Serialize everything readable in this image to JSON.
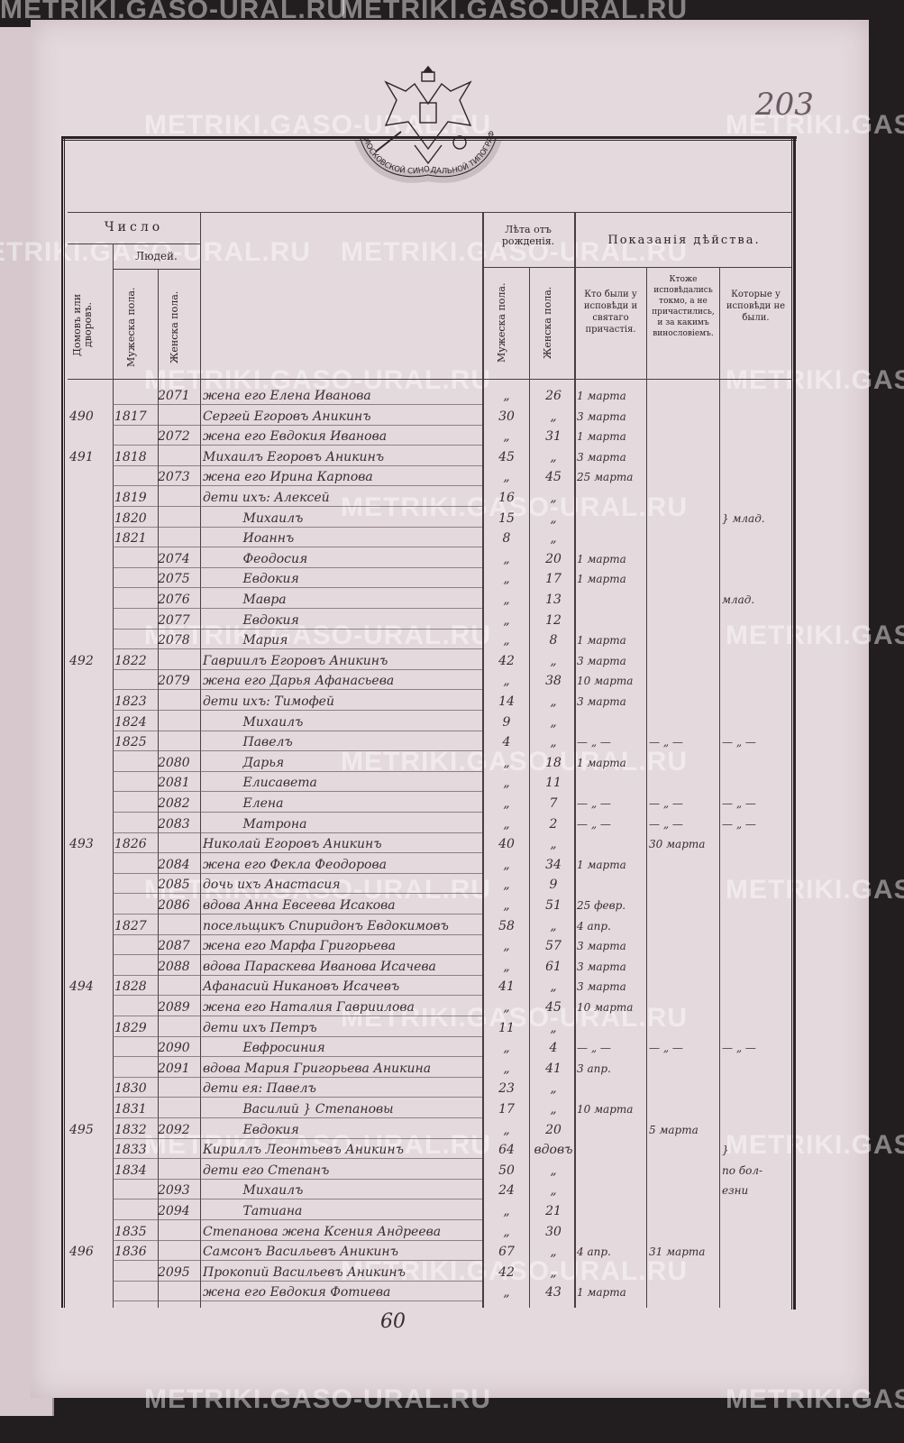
{
  "page_number": "203",
  "watermark": "METRIKI.GASO-URAL.RU",
  "emblem_ribbon": "МОСКОВСКОЙ СИНОДАЛЬНОЙ ТИПОГРАФІИ",
  "header": {
    "number": "Число",
    "people": "Людей.",
    "households": "Домовъ или дворовъ.",
    "male": "Мужеска пола.",
    "female": "Женска пола.",
    "age": "Лѣта отъ рожденія.",
    "age_male": "Мужеска пола.",
    "age_female": "Женска пола.",
    "action": "Показанія дѣйства.",
    "confessed": "Кто были у исповѣди и святаго причастія.",
    "confessed_only": "Ктоже исповѣдались токмо, а не причастились, и за какимъ винословіемъ.",
    "not_confessed": "Которые у исповѣди не были."
  },
  "rows": [
    {
      "hh": "",
      "m": "",
      "f": "2071",
      "name": "жена его Елена Иванова",
      "am": "„",
      "af": "26",
      "c1": "1 марта",
      "c2": "",
      "c3": ""
    },
    {
      "hh": "490",
      "m": "1817",
      "f": "",
      "name": "Сергей Егоровъ Аникинъ",
      "am": "30",
      "af": "„",
      "c1": "3 марта",
      "c2": "",
      "c3": ""
    },
    {
      "hh": "",
      "m": "",
      "f": "2072",
      "name": "жена его Евдокия Иванова",
      "am": "„",
      "af": "31",
      "c1": "1 марта",
      "c2": "",
      "c3": ""
    },
    {
      "hh": "491",
      "m": "1818",
      "f": "",
      "name": "Михаилъ Егоровъ Аникинъ",
      "am": "45",
      "af": "„",
      "c1": "3 марта",
      "c2": "",
      "c3": ""
    },
    {
      "hh": "",
      "m": "",
      "f": "2073",
      "name": "жена его Ирина Карпова",
      "am": "„",
      "af": "45",
      "c1": "25 марта",
      "c2": "",
      "c3": ""
    },
    {
      "hh": "",
      "m": "1819",
      "f": "",
      "name": "дети ихъ: Алексей",
      "am": "16",
      "af": "„",
      "c1": "",
      "c2": "",
      "c3": ""
    },
    {
      "hh": "",
      "m": "1820",
      "f": "",
      "name": "          Михаилъ",
      "am": "15",
      "af": "„",
      "c1": "",
      "c2": "",
      "c3": "} млад."
    },
    {
      "hh": "",
      "m": "1821",
      "f": "",
      "name": "          Иоаннъ",
      "am": "8",
      "af": "„",
      "c1": "",
      "c2": "",
      "c3": ""
    },
    {
      "hh": "",
      "m": "",
      "f": "2074",
      "name": "          Феодосия",
      "am": "„",
      "af": "20",
      "c1": "1 марта",
      "c2": "",
      "c3": ""
    },
    {
      "hh": "",
      "m": "",
      "f": "2075",
      "name": "          Евдокия",
      "am": "„",
      "af": "17",
      "c1": "1 марта",
      "c2": "",
      "c3": ""
    },
    {
      "hh": "",
      "m": "",
      "f": "2076",
      "name": "          Мавра",
      "am": "„",
      "af": "13",
      "c1": "",
      "c2": "",
      "c3": "млад."
    },
    {
      "hh": "",
      "m": "",
      "f": "2077",
      "name": "          Евдокия",
      "am": "„",
      "af": "12",
      "c1": "",
      "c2": "",
      "c3": ""
    },
    {
      "hh": "",
      "m": "",
      "f": "2078",
      "name": "          Мария",
      "am": "„",
      "af": "8",
      "c1": "1 марта",
      "c2": "",
      "c3": ""
    },
    {
      "hh": "492",
      "m": "1822",
      "f": "",
      "name": "Гавриилъ Егоровъ Аникинъ",
      "am": "42",
      "af": "„",
      "c1": "3 марта",
      "c2": "",
      "c3": ""
    },
    {
      "hh": "",
      "m": "",
      "f": "2079",
      "name": "жена его Дарья Афанасьева",
      "am": "„",
      "af": "38",
      "c1": "10 марта",
      "c2": "",
      "c3": ""
    },
    {
      "hh": "",
      "m": "1823",
      "f": "",
      "name": "дети ихъ: Тимофей",
      "am": "14",
      "af": "„",
      "c1": "3 марта",
      "c2": "",
      "c3": ""
    },
    {
      "hh": "",
      "m": "1824",
      "f": "",
      "name": "          Михаилъ",
      "am": "9",
      "af": "„",
      "c1": "",
      "c2": "",
      "c3": ""
    },
    {
      "hh": "",
      "m": "1825",
      "f": "",
      "name": "          Павелъ",
      "am": "4",
      "af": "„",
      "c1": "— „ —",
      "c2": "— „ —",
      "c3": "— „ —"
    },
    {
      "hh": "",
      "m": "",
      "f": "2080",
      "name": "          Дарья",
      "am": "„",
      "af": "18",
      "c1": "1 марта",
      "c2": "",
      "c3": ""
    },
    {
      "hh": "",
      "m": "",
      "f": "2081",
      "name": "          Елисавета",
      "am": "„",
      "af": "11",
      "c1": "",
      "c2": "",
      "c3": ""
    },
    {
      "hh": "",
      "m": "",
      "f": "2082",
      "name": "          Елена",
      "am": "„",
      "af": "7",
      "c1": "— „ —",
      "c2": "— „ —",
      "c3": "— „ —"
    },
    {
      "hh": "",
      "m": "",
      "f": "2083",
      "name": "          Матрона",
      "am": "„",
      "af": "2",
      "c1": "— „ —",
      "c2": "— „ —",
      "c3": "— „ —"
    },
    {
      "hh": "493",
      "m": "1826",
      "f": "",
      "name": "Николай Егоровъ Аникинъ",
      "am": "40",
      "af": "„",
      "c1": "",
      "c2": "30 марта",
      "c3": ""
    },
    {
      "hh": "",
      "m": "",
      "f": "2084",
      "name": "жена его Фекла Феодорова",
      "am": "„",
      "af": "34",
      "c1": "1 марта",
      "c2": "",
      "c3": ""
    },
    {
      "hh": "",
      "m": "",
      "f": "2085",
      "name": "дочь ихъ Анастасия",
      "am": "„",
      "af": "9",
      "c1": "",
      "c2": "",
      "c3": ""
    },
    {
      "hh": "",
      "m": "",
      "f": "2086",
      "name": "вдова Анна Евсеева Исакова",
      "am": "„",
      "af": "51",
      "c1": "25 февр.",
      "c2": "",
      "c3": ""
    },
    {
      "hh": "",
      "m": "1827",
      "f": "",
      "name": "посельщикъ Спиридонъ Евдокимовъ",
      "am": "58",
      "af": "„",
      "c1": "4 апр.",
      "c2": "",
      "c3": ""
    },
    {
      "hh": "",
      "m": "",
      "f": "2087",
      "name": "жена его Марфа Григорьева",
      "am": "„",
      "af": "57",
      "c1": "3 марта",
      "c2": "",
      "c3": ""
    },
    {
      "hh": "",
      "m": "",
      "f": "2088",
      "name": "вдова Параскева Иванова Исачева",
      "am": "„",
      "af": "61",
      "c1": "3 марта",
      "c2": "",
      "c3": ""
    },
    {
      "hh": "494",
      "m": "1828",
      "f": "",
      "name": "Афанасий Никановъ Исачевъ",
      "am": "41",
      "af": "„",
      "c1": "3 марта",
      "c2": "",
      "c3": ""
    },
    {
      "hh": "",
      "m": "",
      "f": "2089",
      "name": "жена его Наталия Гавриилова",
      "am": "„",
      "af": "45",
      "c1": "10 марта",
      "c2": "",
      "c3": ""
    },
    {
      "hh": "",
      "m": "1829",
      "f": "",
      "name": "дети ихъ Петръ",
      "am": "11",
      "af": "„",
      "c1": "",
      "c2": "",
      "c3": ""
    },
    {
      "hh": "",
      "m": "",
      "f": "2090",
      "name": "          Евфросиния",
      "am": "„",
      "af": "4",
      "c1": "— „ —",
      "c2": "— „ —",
      "c3": "— „ —"
    },
    {
      "hh": "",
      "m": "",
      "f": "2091",
      "name": "вдова Мария Григорьева Аникина",
      "am": "„",
      "af": "41",
      "c1": "3 апр.",
      "c2": "",
      "c3": ""
    },
    {
      "hh": "",
      "m": "1830",
      "f": "",
      "name": "дети ея: Павелъ",
      "am": "23",
      "af": "„",
      "c1": "",
      "c2": "",
      "c3": ""
    },
    {
      "hh": "",
      "m": "1831",
      "f": "",
      "name": "          Василий } Степановы",
      "am": "17",
      "af": "„",
      "c1": "10 марта",
      "c2": "",
      "c3": ""
    },
    {
      "hh": "495",
      "m": "1832",
      "f": "2092",
      "name": "          Евдокия",
      "am": "„",
      "af": "20",
      "c1": "",
      "c2": "5 марта",
      "c3": ""
    },
    {
      "hh": "",
      "m": "1833",
      "f": "",
      "name": "Кириллъ Леонтьевъ Аникинъ",
      "am": "64",
      "af": "вдовъ",
      "c1": "",
      "c2": "",
      "c3": "}"
    },
    {
      "hh": "",
      "m": "1834",
      "f": "",
      "name": "дети его Степанъ",
      "am": "50",
      "af": "„",
      "c1": "",
      "c2": "",
      "c3": "по бол-"
    },
    {
      "hh": "",
      "m": "",
      "f": "2093",
      "name": "          Михаилъ",
      "am": "24",
      "af": "„",
      "c1": "",
      "c2": "",
      "c3": "езни"
    },
    {
      "hh": "",
      "m": "",
      "f": "2094",
      "name": "          Татиана",
      "am": "„",
      "af": "21",
      "c1": "",
      "c2": "",
      "c3": ""
    },
    {
      "hh": "",
      "m": "1835",
      "f": "",
      "name": "Степанова жена Ксения Андреева",
      "am": "„",
      "af": "30",
      "c1": "",
      "c2": "",
      "c3": ""
    },
    {
      "hh": "496",
      "m": "1836",
      "f": "",
      "name": "Самсонъ Васильевъ Аникинъ",
      "am": "67",
      "af": "„",
      "c1": "4 апр.",
      "c2": "31 марта",
      "c3": ""
    },
    {
      "hh": "",
      "m": "",
      "f": "2095",
      "name": "Прокопий Васильевъ Аникинъ",
      "am": "42",
      "af": "„",
      "c1": "",
      "c2": "",
      "c3": ""
    },
    {
      "hh": "",
      "m": "",
      "f": "",
      "name": "жена его Евдокия Фотиева",
      "am": "„",
      "af": "43",
      "c1": "1 марта",
      "c2": "",
      "c3": ""
    }
  ],
  "footer": "60"
}
